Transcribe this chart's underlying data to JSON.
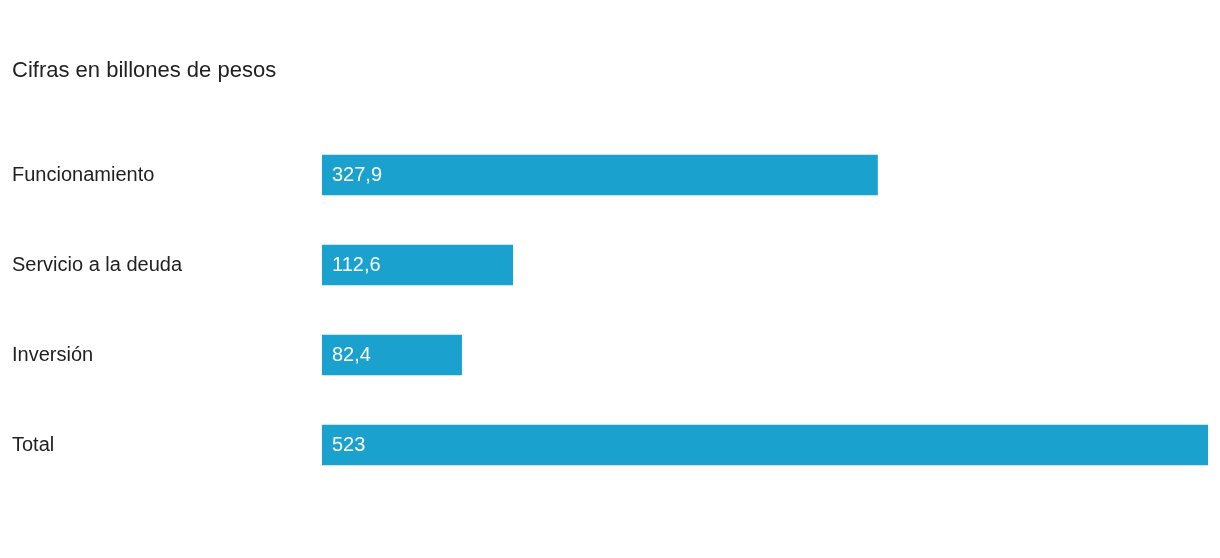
{
  "chart_data": {
    "type": "bar",
    "orientation": "horizontal",
    "title": "Cifras en billones de pesos",
    "categories": [
      "Funcionamiento",
      "Servicio a la deuda",
      "Inversión",
      "Total"
    ],
    "values": [
      327.9,
      112.6,
      82.4,
      523
    ],
    "value_labels": [
      "327,9",
      "112,6",
      "82,4",
      "523"
    ],
    "color": "#1aa1ce",
    "xlim": [
      0,
      523
    ]
  }
}
